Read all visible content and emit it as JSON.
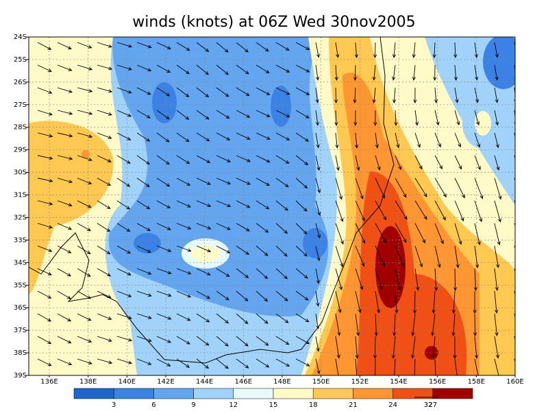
{
  "title": "winds (knots) at 06Z Wed 30nov2005",
  "lat_labels": [
    "24S",
    "25S",
    "26S",
    "27S",
    "28S",
    "29S",
    "30S",
    "31S",
    "32S",
    "33S",
    "34S",
    "35S",
    "36S",
    "37S",
    "38S",
    "39S"
  ],
  "lon_labels": [
    "136E",
    "138E",
    "140E",
    "142E",
    "144E",
    "146E",
    "148E",
    "150E",
    "152E",
    "154E",
    "156E",
    "158E",
    "160E"
  ],
  "colorbar": {
    "levels": [
      3,
      6,
      9,
      12,
      15,
      18,
      21,
      24,
      27
    ],
    "colors": [
      "#1e64d2",
      "#3c82e6",
      "#64a5f0",
      "#a0d2fa",
      "#e6fafa",
      "#fffac8",
      "#ffc850",
      "#ff9632",
      "#f05014",
      "#a00000"
    ]
  },
  "reference_vector": "32"
}
